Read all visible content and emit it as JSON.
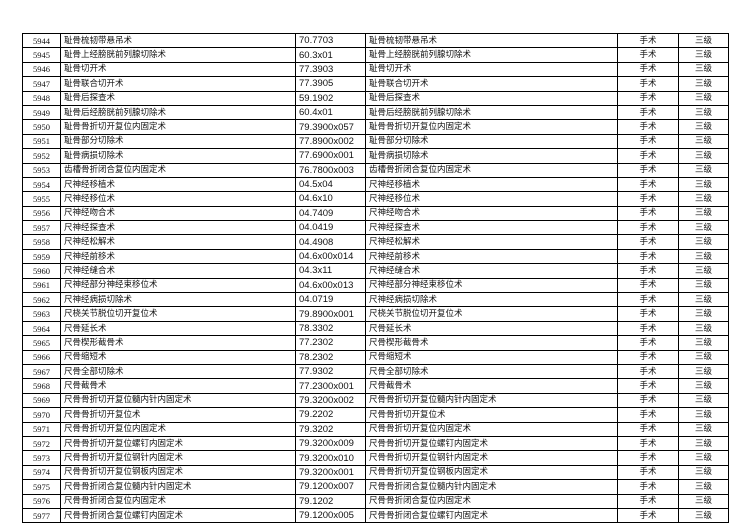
{
  "rows": [
    [
      "5944",
      "耻骨梳韧带悬吊术",
      "70.7703",
      "耻骨梳韧带悬吊术",
      "手术",
      "三级"
    ],
    [
      "5945",
      "耻骨上经膀胱前列腺切除术",
      "60.3x01",
      "耻骨上经膀胱前列腺切除术",
      "手术",
      "三级"
    ],
    [
      "5946",
      "耻骨切开术",
      "77.3903",
      "耻骨切开术",
      "手术",
      "三级"
    ],
    [
      "5947",
      "耻骨联合切开术",
      "77.3905",
      "耻骨联合切开术",
      "手术",
      "三级"
    ],
    [
      "5948",
      "耻骨后探查术",
      "59.1902",
      "耻骨后探查术",
      "手术",
      "三级"
    ],
    [
      "5949",
      "耻骨后经膀胱前列腺切除术",
      "60.4x01",
      "耻骨后经膀胱前列腺切除术",
      "手术",
      "三级"
    ],
    [
      "5950",
      "耻骨骨折切开复位内固定术",
      "79.3900x057",
      "耻骨骨折切开复位内固定术",
      "手术",
      "三级"
    ],
    [
      "5951",
      "耻骨部分切除术",
      "77.8900x002",
      "耻骨部分切除术",
      "手术",
      "三级"
    ],
    [
      "5952",
      "耻骨病损切除术",
      "77.6900x001",
      "耻骨病损切除术",
      "手术",
      "三级"
    ],
    [
      "5953",
      "齿槽骨折闭合复位内固定术",
      "76.7800x003",
      "齿槽骨折闭合复位内固定术",
      "手术",
      "三级"
    ],
    [
      "5954",
      "尺神经移植术",
      "04.5x04",
      "尺神经移植术",
      "手术",
      "三级"
    ],
    [
      "5955",
      "尺神经移位术",
      "04.6x10",
      "尺神经移位术",
      "手术",
      "三级"
    ],
    [
      "5956",
      "尺神经吻合术",
      "04.7409",
      "尺神经吻合术",
      "手术",
      "三级"
    ],
    [
      "5957",
      "尺神经探查术",
      "04.0419",
      "尺神经探查术",
      "手术",
      "三级"
    ],
    [
      "5958",
      "尺神经松解术",
      "04.4908",
      "尺神经松解术",
      "手术",
      "三级"
    ],
    [
      "5959",
      "尺神经前移术",
      "04.6x00x014",
      "尺神经前移术",
      "手术",
      "三级"
    ],
    [
      "5960",
      "尺神经缝合术",
      "04.3x11",
      "尺神经缝合术",
      "手术",
      "三级"
    ],
    [
      "5961",
      "尺神经部分神经束移位术",
      "04.6x00x013",
      "尺神经部分神经束移位术",
      "手术",
      "三级"
    ],
    [
      "5962",
      "尺神经病损切除术",
      "04.0719",
      "尺神经病损切除术",
      "手术",
      "三级"
    ],
    [
      "5963",
      "尺桡关节脱位切开复位术",
      "79.8900x001",
      "尺桡关节脱位切开复位术",
      "手术",
      "三级"
    ],
    [
      "5964",
      "尺骨延长术",
      "78.3302",
      "尺骨延长术",
      "手术",
      "三级"
    ],
    [
      "5965",
      "尺骨楔形截骨术",
      "77.2302",
      "尺骨楔形截骨术",
      "手术",
      "三级"
    ],
    [
      "5966",
      "尺骨缩短术",
      "78.2302",
      "尺骨缩短术",
      "手术",
      "三级"
    ],
    [
      "5967",
      "尺骨全部切除术",
      "77.9302",
      "尺骨全部切除术",
      "手术",
      "三级"
    ],
    [
      "5968",
      "尺骨截骨术",
      "77.2300x001",
      "尺骨截骨术",
      "手术",
      "三级"
    ],
    [
      "5969",
      "尺骨骨折切开复位髓内针内固定术",
      "79.3200x002",
      "尺骨骨折切开复位髓内针内固定术",
      "手术",
      "三级"
    ],
    [
      "5970",
      "尺骨骨折切开复位术",
      "79.2202",
      "尺骨骨折切开复位术",
      "手术",
      "三级"
    ],
    [
      "5971",
      "尺骨骨折切开复位内固定术",
      "79.3202",
      "尺骨骨折切开复位内固定术",
      "手术",
      "三级"
    ],
    [
      "5972",
      "尺骨骨折切开复位螺钉内固定术",
      "79.3200x009",
      "尺骨骨折切开复位螺钉内固定术",
      "手术",
      "三级"
    ],
    [
      "5973",
      "尺骨骨折切开复位钢针内固定术",
      "79.3200x010",
      "尺骨骨折切开复位钢针内固定术",
      "手术",
      "三级"
    ],
    [
      "5974",
      "尺骨骨折切开复位钢板内固定术",
      "79.3200x001",
      "尺骨骨折切开复位钢板内固定术",
      "手术",
      "三级"
    ],
    [
      "5975",
      "尺骨骨折闭合复位髓内针内固定术",
      "79.1200x007",
      "尺骨骨折闭合复位髓内针内固定术",
      "手术",
      "三级"
    ],
    [
      "5976",
      "尺骨骨折闭合复位内固定术",
      "79.1202",
      "尺骨骨折闭合复位内固定术",
      "手术",
      "三级"
    ],
    [
      "5977",
      "尺骨骨折闭合复位螺钉内固定术",
      "79.1200x005",
      "尺骨骨折闭合复位螺钉内固定术",
      "手术",
      "三级"
    ]
  ]
}
